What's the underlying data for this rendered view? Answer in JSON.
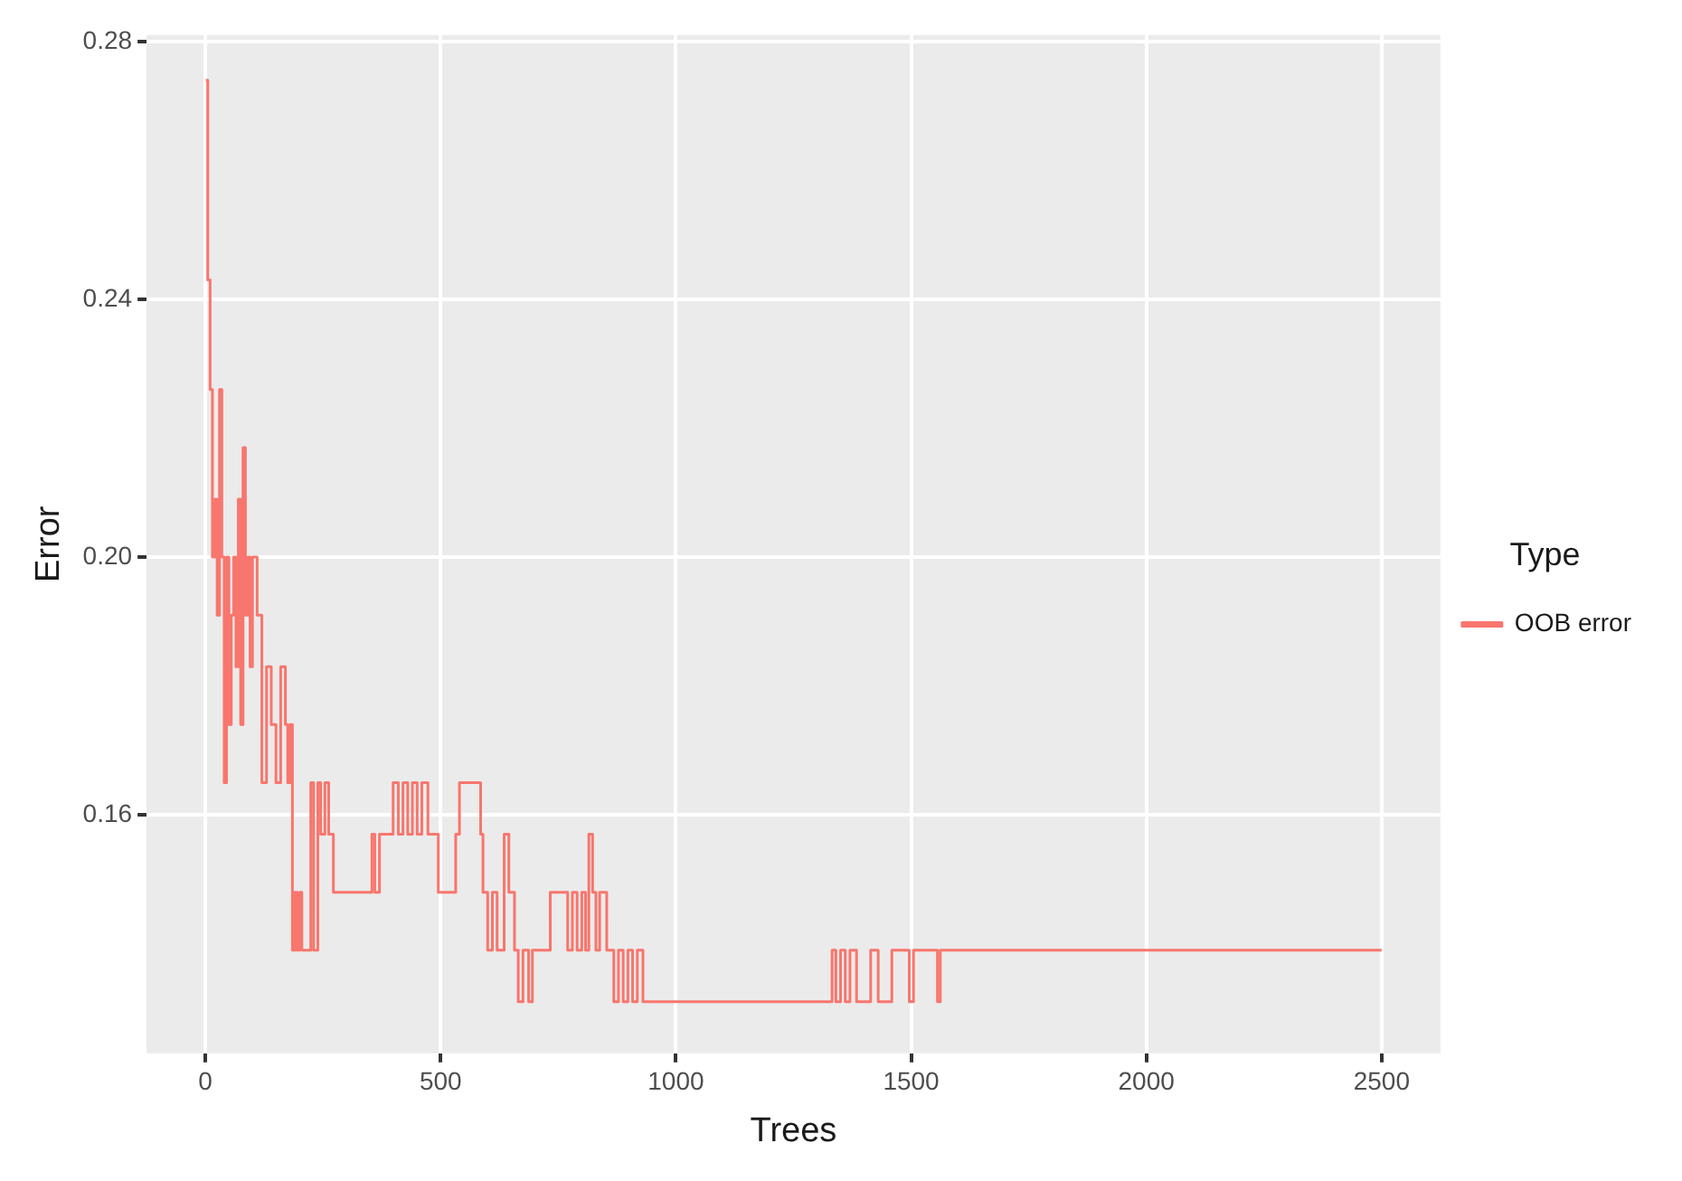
{
  "chart_data": {
    "type": "step",
    "xlabel": "Trees",
    "ylabel": "Error",
    "legend_title": "Type",
    "legend": "right",
    "grid": true,
    "marker": "none",
    "line_style": "solid",
    "xlim": [
      -125,
      2625
    ],
    "xticks": [
      0,
      500,
      1000,
      1500,
      2000,
      2500
    ],
    "ylim": [
      0.123,
      0.281
    ],
    "yticks": [
      {
        "value": 0.16,
        "label": "0.16"
      },
      {
        "value": 0.2,
        "label": "0.20"
      },
      {
        "value": 0.24,
        "label": "0.24"
      },
      {
        "value": 0.28,
        "label": "0.28"
      }
    ],
    "series": [
      {
        "name": "OOB error",
        "color": "#f8766d",
        "x": [
          1,
          5,
          10,
          15,
          20,
          25,
          30,
          35,
          40,
          45,
          50,
          55,
          60,
          65,
          70,
          75,
          80,
          85,
          90,
          95,
          100,
          110,
          120,
          130,
          140,
          150,
          160,
          170,
          175,
          180,
          185,
          190,
          195,
          200,
          205,
          224,
          230,
          239,
          245,
          254,
          262,
          272,
          300,
          354,
          360,
          370,
          384,
          399,
          410,
          420,
          430,
          440,
          450,
          460,
          473,
          495,
          532,
          540,
          585,
          590,
          600,
          610,
          620,
          635,
          645,
          657,
          665,
          675,
          687,
          695,
          725,
          733,
          763,
          770,
          780,
          790,
          800,
          808,
          815,
          823,
          830,
          838,
          853,
          868,
          878,
          888,
          898,
          908,
          918,
          930,
          943,
          1332,
          1340,
          1350,
          1360,
          1370,
          1384,
          1414,
          1430,
          1445,
          1459,
          1496,
          1505,
          1556,
          1562,
          2500
        ],
        "values": [
          0.274,
          0.243,
          0.226,
          0.2,
          0.209,
          0.191,
          0.226,
          0.2,
          0.165,
          0.2,
          0.174,
          0.191,
          0.2,
          0.183,
          0.209,
          0.174,
          0.217,
          0.191,
          0.2,
          0.183,
          0.2,
          0.191,
          0.165,
          0.183,
          0.174,
          0.165,
          0.183,
          0.174,
          0.165,
          0.174,
          0.139,
          0.148,
          0.139,
          0.148,
          0.139,
          0.165,
          0.139,
          0.165,
          0.157,
          0.165,
          0.157,
          0.148,
          0.148,
          0.157,
          0.148,
          0.157,
          0.157,
          0.165,
          0.157,
          0.165,
          0.157,
          0.165,
          0.157,
          0.165,
          0.157,
          0.148,
          0.157,
          0.165,
          0.157,
          0.148,
          0.139,
          0.148,
          0.139,
          0.157,
          0.148,
          0.139,
          0.131,
          0.139,
          0.131,
          0.139,
          0.139,
          0.148,
          0.148,
          0.139,
          0.148,
          0.139,
          0.148,
          0.139,
          0.157,
          0.148,
          0.139,
          0.148,
          0.139,
          0.131,
          0.139,
          0.131,
          0.139,
          0.131,
          0.139,
          0.131,
          0.131,
          0.139,
          0.131,
          0.139,
          0.131,
          0.139,
          0.131,
          0.139,
          0.131,
          0.131,
          0.139,
          0.131,
          0.139,
          0.131,
          0.139,
          0.139
        ]
      }
    ]
  }
}
